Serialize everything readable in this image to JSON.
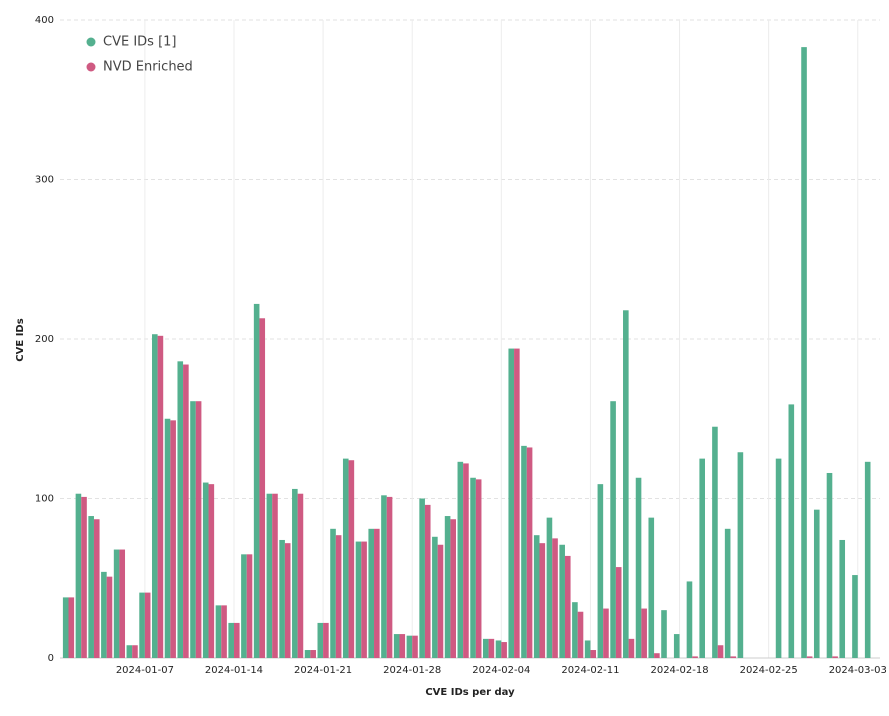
{
  "chart_data": {
    "type": "bar",
    "xlabel": "CVE IDs per day",
    "ylabel": "CVE IDs",
    "categories": [
      "2024-01-01",
      "2024-01-02",
      "2024-01-03",
      "2024-01-04",
      "2024-01-05",
      "2024-01-06",
      "2024-01-07",
      "2024-01-08",
      "2024-01-09",
      "2024-01-10",
      "2024-01-11",
      "2024-01-12",
      "2024-01-13",
      "2024-01-14",
      "2024-01-15",
      "2024-01-16",
      "2024-01-17",
      "2024-01-18",
      "2024-01-19",
      "2024-01-20",
      "2024-01-21",
      "2024-01-22",
      "2024-01-23",
      "2024-01-24",
      "2024-01-25",
      "2024-01-26",
      "2024-01-27",
      "2024-01-28",
      "2024-01-29",
      "2024-01-30",
      "2024-01-31",
      "2024-02-01",
      "2024-02-02",
      "2024-02-03",
      "2024-02-04",
      "2024-02-05",
      "2024-02-06",
      "2024-02-07",
      "2024-02-08",
      "2024-02-09",
      "2024-02-10",
      "2024-02-11",
      "2024-02-12",
      "2024-02-13",
      "2024-02-14",
      "2024-02-15",
      "2024-02-16",
      "2024-02-17",
      "2024-02-18",
      "2024-02-19",
      "2024-02-20",
      "2024-02-21",
      "2024-02-22",
      "2024-02-23",
      "2024-02-24",
      "2024-02-25",
      "2024-02-26",
      "2024-02-27",
      "2024-02-28",
      "2024-02-29",
      "2024-03-01",
      "2024-03-02",
      "2024-03-03",
      "2024-03-04"
    ],
    "series": [
      {
        "name": "CVE IDs [1]",
        "color": "#54b08f",
        "values": [
          38,
          103,
          89,
          54,
          68,
          8,
          41,
          203,
          150,
          186,
          161,
          110,
          33,
          22,
          65,
          222,
          103,
          74,
          106,
          5,
          22,
          81,
          125,
          73,
          81,
          102,
          15,
          14,
          100,
          76,
          89,
          123,
          113,
          12,
          11,
          194,
          133,
          77,
          88,
          71,
          35,
          11,
          109,
          161,
          218,
          113,
          88,
          30,
          15,
          48,
          125,
          145,
          81,
          129,
          0,
          0,
          125,
          159,
          383,
          93,
          116,
          74,
          52,
          123
        ]
      },
      {
        "name": "NVD Enriched",
        "color": "#cf5a82",
        "values": [
          38,
          101,
          87,
          51,
          68,
          8,
          41,
          202,
          149,
          184,
          161,
          109,
          33,
          22,
          65,
          213,
          103,
          72,
          103,
          5,
          22,
          77,
          124,
          73,
          81,
          101,
          15,
          14,
          96,
          71,
          87,
          122,
          112,
          12,
          10,
          194,
          132,
          72,
          75,
          64,
          29,
          5,
          31,
          57,
          12,
          31,
          3,
          0,
          0,
          1,
          0,
          8,
          1,
          0,
          0,
          0,
          0,
          0,
          1,
          0,
          1,
          0,
          0,
          0
        ]
      }
    ],
    "ylim": [
      0,
      400
    ],
    "yticks": [
      0,
      100,
      200,
      300,
      400
    ],
    "grid": true,
    "legend": "upper left"
  }
}
